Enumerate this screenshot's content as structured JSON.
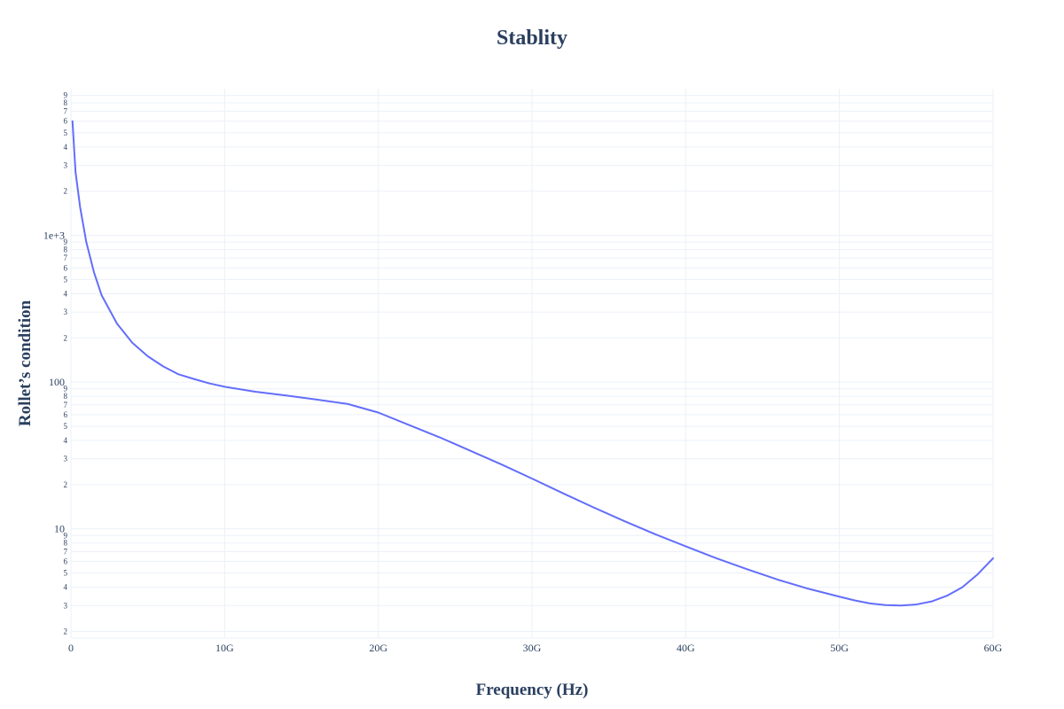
{
  "chart_data": {
    "type": "line",
    "title": "Stablity",
    "xlabel": "Frequency (Hz)",
    "ylabel": "Rollet’s condition",
    "xlim": [
      0,
      60000000000
    ],
    "ylim": [
      1.8,
      10000
    ],
    "yscale": "log",
    "grid": true,
    "x_ticks": [
      {
        "value": 0,
        "label": "0"
      },
      {
        "value": 10000000000,
        "label": "10G"
      },
      {
        "value": 20000000000,
        "label": "20G"
      },
      {
        "value": 30000000000,
        "label": "30G"
      },
      {
        "value": 40000000000,
        "label": "40G"
      },
      {
        "value": 50000000000,
        "label": "50G"
      },
      {
        "value": 60000000000,
        "label": "60G"
      }
    ],
    "y_major_ticks": [
      {
        "value": 10,
        "label": "10"
      },
      {
        "value": 100,
        "label": "100"
      },
      {
        "value": 1000,
        "label": "1e+3"
      }
    ],
    "y_minor_labels": [
      "2",
      "3",
      "4",
      "5",
      "6",
      "7",
      "8",
      "9"
    ],
    "series": [
      {
        "color": "#636efa",
        "x": [
          100000000,
          300000000,
          600000000,
          1000000000,
          1500000000,
          2000000000,
          3000000000,
          4000000000,
          5000000000,
          6000000000,
          7000000000,
          8000000000,
          9000000000,
          10000000000,
          12000000000,
          14000000000,
          16000000000,
          18000000000,
          20000000000,
          22000000000,
          24000000000,
          26000000000,
          28000000000,
          30000000000,
          32000000000,
          34000000000,
          36000000000,
          38000000000,
          40000000000,
          42000000000,
          44000000000,
          46000000000,
          48000000000,
          50000000000,
          51000000000,
          52000000000,
          53000000000,
          54000000000,
          55000000000,
          56000000000,
          57000000000,
          58000000000,
          59000000000,
          60000000000
        ],
        "y": [
          6000,
          2700,
          1550,
          900,
          560,
          390,
          250,
          185,
          150,
          128,
          113,
          105,
          98,
          93,
          86,
          81,
          76,
          71,
          62,
          51,
          42,
          34,
          27.5,
          22,
          17.5,
          14,
          11.3,
          9.2,
          7.6,
          6.3,
          5.3,
          4.5,
          3.9,
          3.45,
          3.25,
          3.1,
          3.02,
          3.0,
          3.05,
          3.2,
          3.5,
          4.0,
          4.9,
          6.3
        ]
      }
    ]
  }
}
